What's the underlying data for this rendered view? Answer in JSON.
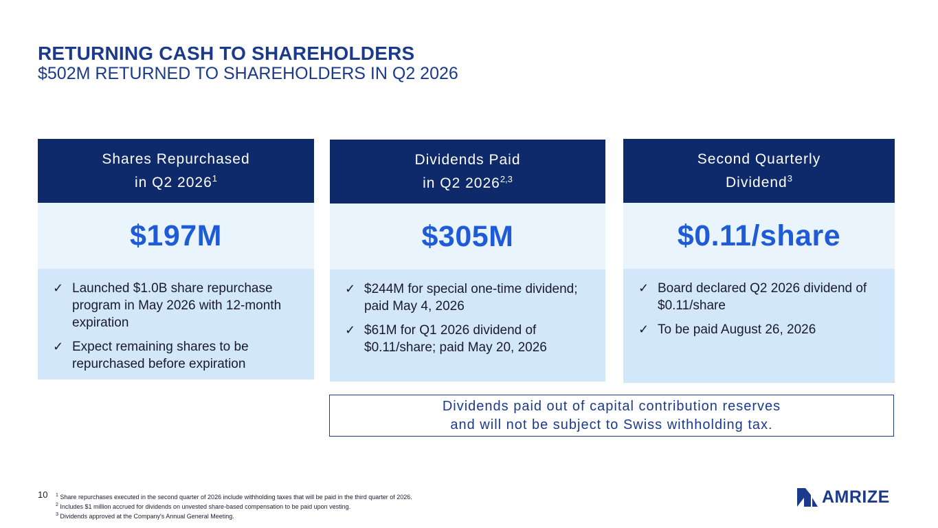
{
  "header": {
    "title": "RETURNING CASH TO SHAREHOLDERS",
    "subtitle": "$502M RETURNED TO SHAREHOLDERS IN Q2 2026"
  },
  "cards": [
    {
      "head_line1": "Shares Repurchased",
      "head_line2": "in Q2 2026",
      "head_sup": "1",
      "value": "$197M",
      "bullets": [
        "Launched $1.0B share repurchase program in May 2026 with 12-month expiration",
        "Expect remaining shares to be repurchased before expiration"
      ]
    },
    {
      "head_line1": "Dividends Paid",
      "head_line2": "in Q2 2026",
      "head_sup": "2,3",
      "value": "$305M",
      "bullets": [
        "$244M for special one-time dividend; paid May 4, 2026",
        "$61M for Q1 2026 dividend of $0.11/share; paid May 20, 2026"
      ]
    },
    {
      "head_line1": "Second Quarterly",
      "head_line2": "Dividend",
      "head_sup": "3",
      "value": "$0.11/share",
      "bullets": [
        "Board declared Q2 2026 dividend of $0.11/share",
        "To be paid August 26, 2026"
      ]
    }
  ],
  "note": {
    "line1": "Dividends paid out of capital contribution reserves",
    "line2": "and will not be subject to Swiss withholding tax."
  },
  "footer": {
    "page_number": "10",
    "footnotes": [
      {
        "mark": "1",
        "text": "Share repurchases executed in the second quarter of 2026 include withholding taxes that will be paid in the third quarter of 2026."
      },
      {
        "mark": "2",
        "text": "Includes $1 million accrued for dividends on unvested share-based compensation to be paid upon vesting."
      },
      {
        "mark": "3",
        "text": "Dividends approved at the Company's Annual General Meeting."
      }
    ],
    "logo_text": "AMRIZE"
  },
  "icons": {
    "check": "check-icon",
    "logo": "amrize-logo-icon"
  },
  "colors": {
    "brand_navy": "#0f2a6b",
    "title_blue": "#1b3a8c",
    "value_blue": "#1f5bd6",
    "value_bg": "#eaf4fc",
    "body_bg": "#d3e7fb"
  }
}
